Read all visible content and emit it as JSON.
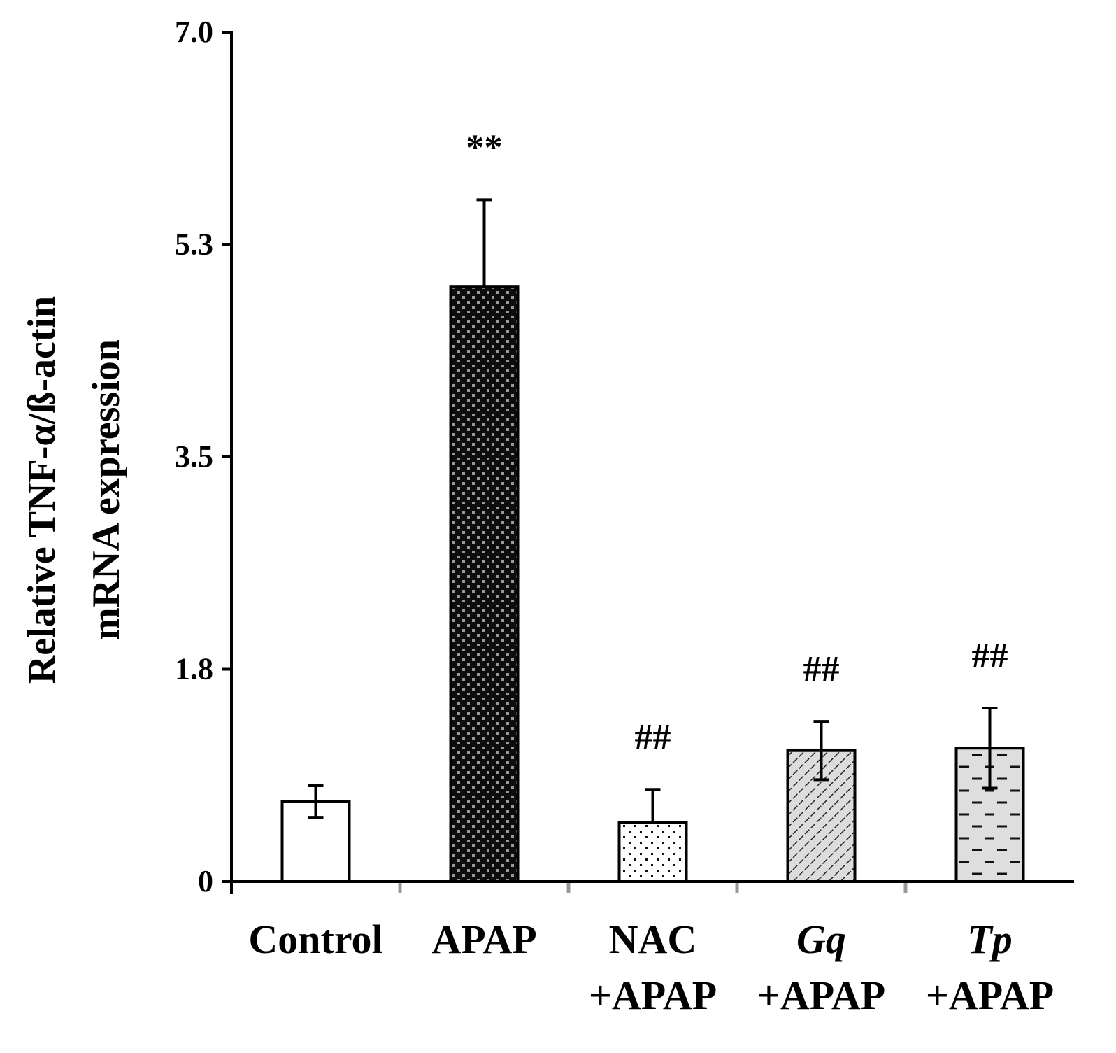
{
  "chart_data": {
    "type": "bar",
    "ylabel_lines": [
      "Relative TNF-α/ß-actin",
      "mRNA expression"
    ],
    "xlabel": "",
    "title": "",
    "ylim": [
      0,
      7.0
    ],
    "yticks": [
      {
        "value": 0,
        "label": "0"
      },
      {
        "value": 1.75,
        "label": "1.8"
      },
      {
        "value": 3.5,
        "label": "3.5"
      },
      {
        "value": 5.25,
        "label": "5.3"
      },
      {
        "value": 7.0,
        "label": "7.0"
      }
    ],
    "grid": false,
    "categories": [
      {
        "lines": [
          {
            "text": "Control",
            "italic": false
          }
        ],
        "value": 0.66,
        "error": 0.13,
        "error_style": "both",
        "fill": "none",
        "annotation": ""
      },
      {
        "lines": [
          {
            "text": "APAP",
            "italic": false
          }
        ],
        "value": 4.9,
        "error": 0.72,
        "error_style": "up",
        "fill": "dots-dark",
        "annotation": "**"
      },
      {
        "lines": [
          {
            "text": "NAC",
            "italic": false
          },
          {
            "text": "+APAP",
            "italic": false
          }
        ],
        "value": 0.49,
        "error": 0.27,
        "error_style": "up",
        "fill": "dots-light",
        "annotation": "##"
      },
      {
        "lines": [
          {
            "text": "Gq",
            "italic": true
          },
          {
            "text": "+APAP",
            "italic": false
          }
        ],
        "value": 1.08,
        "error": 0.24,
        "error_style": "both",
        "fill": "hatch",
        "annotation": "##"
      },
      {
        "lines": [
          {
            "text": "Tp",
            "italic": true
          },
          {
            "text": "+APAP",
            "italic": false
          }
        ],
        "value": 1.1,
        "error": 0.33,
        "error_style": "both",
        "fill": "dashes",
        "annotation": "##"
      }
    ]
  }
}
